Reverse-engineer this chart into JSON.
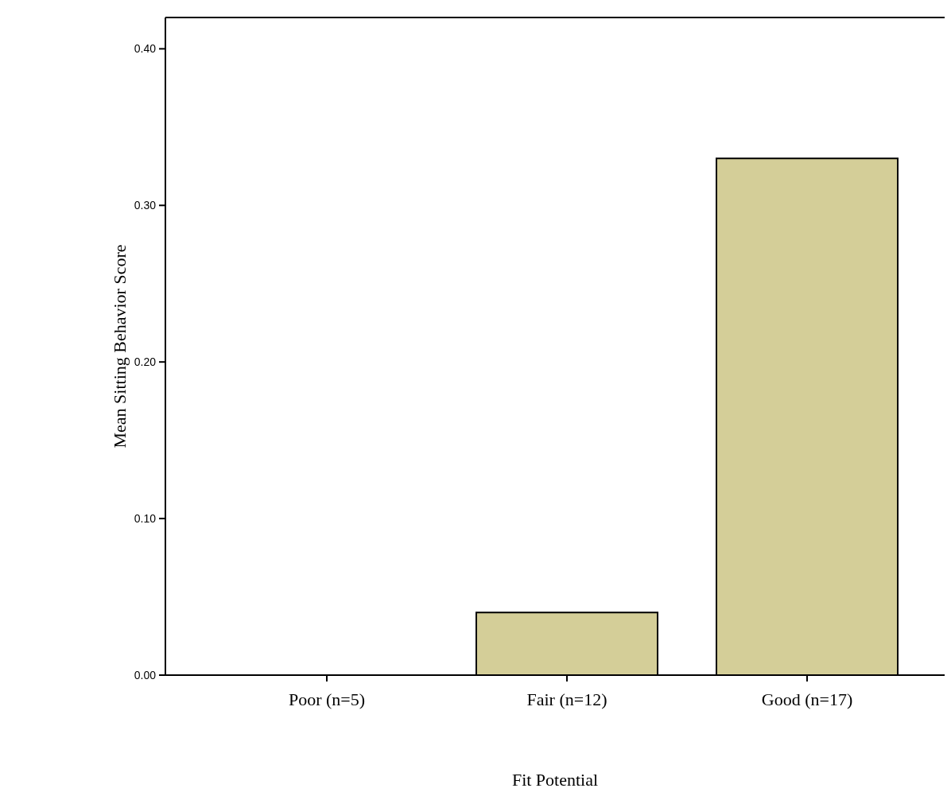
{
  "chart_data": {
    "type": "bar",
    "xlabel": "Fit Potential",
    "ylabel": "Mean Sitting Behavior Score",
    "categories": [
      "Poor (n=5)",
      "Fair (n=12)",
      "Good (n=17)"
    ],
    "values": [
      0,
      0.04,
      0.33
    ],
    "color": "#d4ce98",
    "ylim": [
      0,
      0.42
    ],
    "yticks": [
      {
        "value": 0,
        "label": "0.00"
      },
      {
        "value": 0.1,
        "label": "0.10"
      },
      {
        "value": 0.2,
        "label": "0.20"
      },
      {
        "value": 0.3,
        "label": "0.30"
      },
      {
        "value": 0.4,
        "label": "0.40"
      }
    ],
    "grid": false
  }
}
